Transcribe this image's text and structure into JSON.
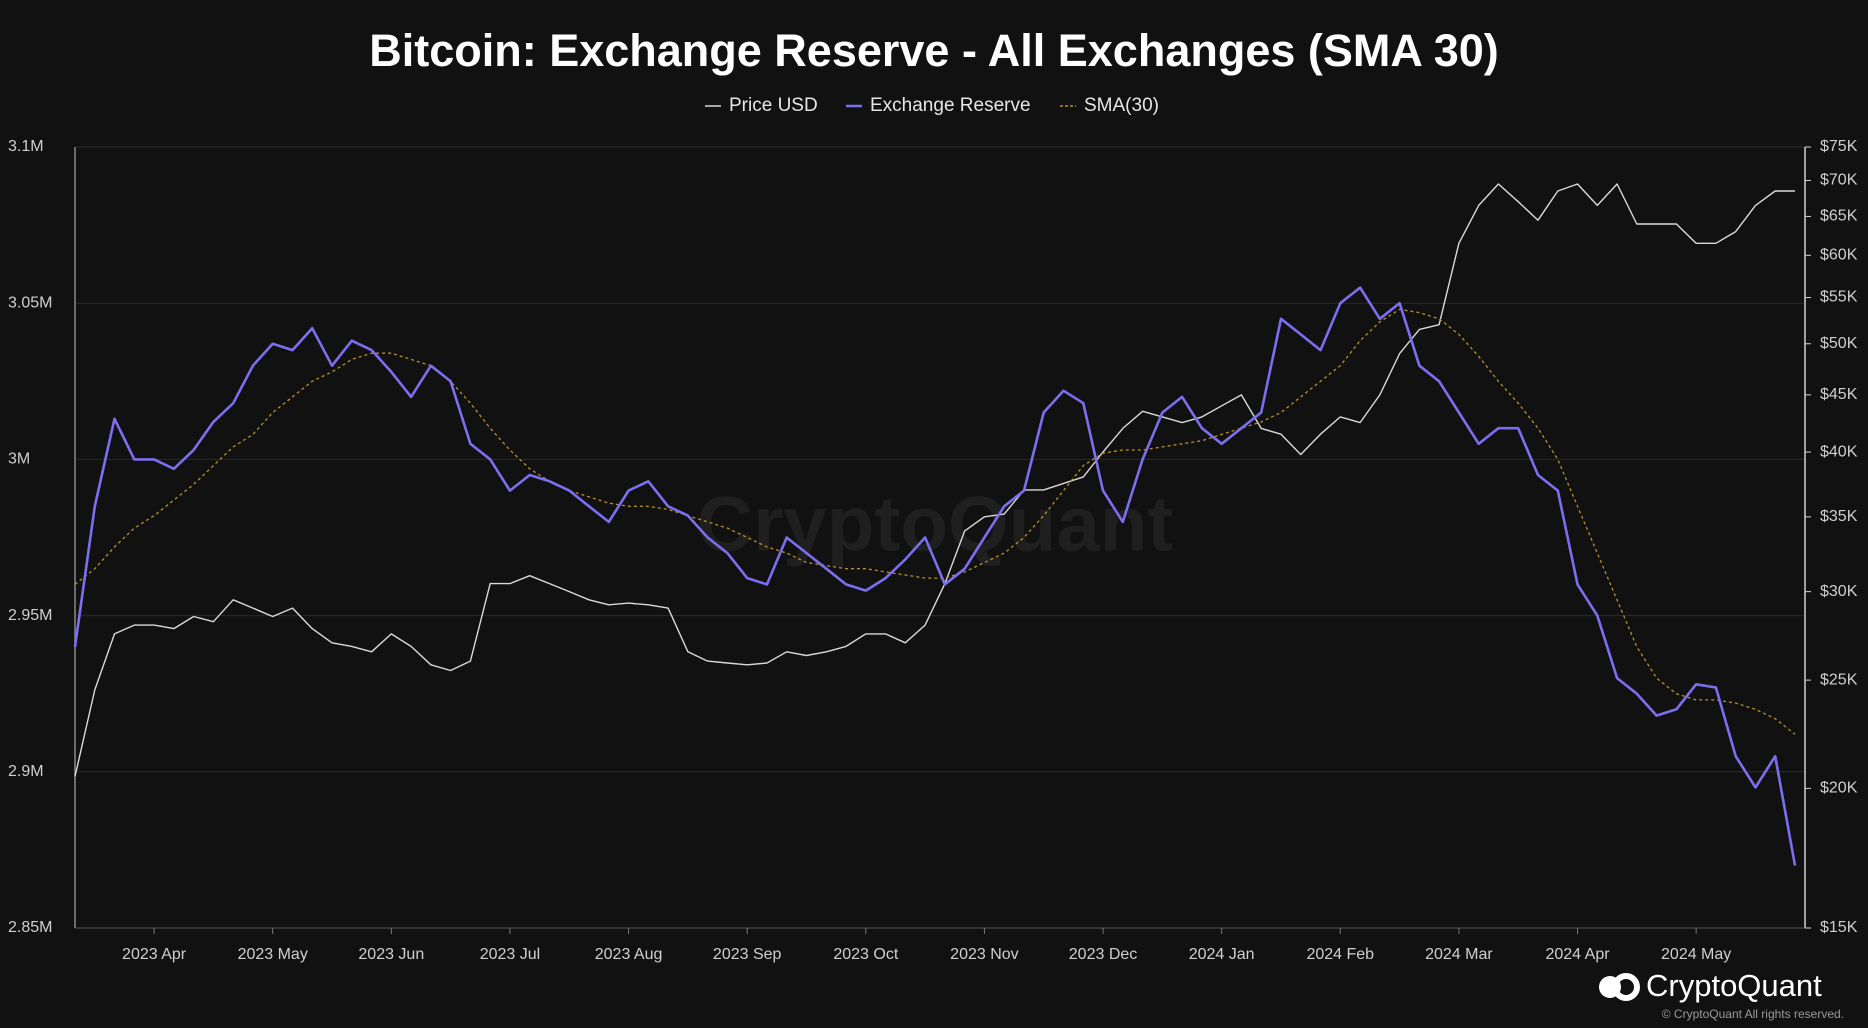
{
  "chart_data": {
    "type": "line",
    "title": "Bitcoin: Exchange Reserve - All Exchanges (SMA 30)",
    "watermark": "CryptoQuant",
    "logo_text": "CryptoQuant",
    "copyright": "© CryptoQuant All rights reserved.",
    "categories": [
      null,
      null,
      null,
      null,
      "2023 Apr",
      null,
      null,
      null,
      null,
      null,
      "2023 May",
      null,
      null,
      null,
      null,
      null,
      "2023 Jun",
      null,
      null,
      null,
      null,
      null,
      "2023 Jul",
      null,
      null,
      null,
      null,
      null,
      "2023 Aug",
      null,
      null,
      null,
      null,
      null,
      "2023 Sep",
      null,
      null,
      null,
      null,
      null,
      "2023 Oct",
      null,
      null,
      null,
      null,
      null,
      "2023 Nov",
      null,
      null,
      null,
      null,
      null,
      "2023 Dec",
      null,
      null,
      null,
      null,
      null,
      "2024 Jan",
      null,
      null,
      null,
      null,
      null,
      "2024 Feb",
      null,
      null,
      null,
      null,
      null,
      "2024 Mar",
      null,
      null,
      null,
      null,
      null,
      "2024 Apr",
      null,
      null,
      null,
      null,
      null,
      "2024 May",
      null,
      null,
      null,
      null,
      null
    ],
    "series": [
      {
        "name": "Price USD",
        "color": "#d9d9d9",
        "axis": "y2",
        "dashed": false,
        "values": [
          20500,
          24500,
          27500,
          28000,
          28000,
          27800,
          28500,
          28200,
          29500,
          29000,
          28500,
          29000,
          27800,
          27000,
          26800,
          26500,
          27500,
          26800,
          25800,
          25500,
          26000,
          30500,
          30500,
          31000,
          30500,
          30000,
          29500,
          29200,
          29300,
          29200,
          29000,
          26500,
          26000,
          25900,
          25800,
          25900,
          26500,
          26300,
          26500,
          26800,
          27500,
          27500,
          27000,
          28000,
          30500,
          34000,
          35000,
          35200,
          37000,
          37000,
          37500,
          38000,
          40000,
          42000,
          43500,
          43000,
          42500,
          43000,
          44000,
          45000,
          42000,
          41500,
          39800,
          41500,
          43000,
          42500,
          45000,
          49000,
          51500,
          52000,
          61500,
          66500,
          69500,
          67000,
          64500,
          68500,
          69500,
          66500,
          69500,
          64000,
          64000,
          64000,
          61500,
          61500,
          63000,
          66500,
          68500,
          68500
        ]
      },
      {
        "name": "Exchange Reserve",
        "color": "#7b6ff0",
        "axis": "y",
        "dashed": false,
        "values": [
          2940000,
          2985000,
          3013000,
          3000000,
          3000000,
          2997000,
          3003000,
          3012000,
          3018000,
          3030000,
          3037000,
          3035000,
          3042000,
          3030000,
          3038000,
          3035000,
          3028000,
          3020000,
          3030000,
          3025000,
          3005000,
          3000000,
          2990000,
          2995000,
          2993000,
          2990000,
          2985000,
          2980000,
          2990000,
          2993000,
          2985000,
          2982000,
          2975000,
          2970000,
          2962000,
          2960000,
          2975000,
          2970000,
          2965000,
          2960000,
          2958000,
          2962000,
          2968000,
          2975000,
          2960000,
          2965000,
          2975000,
          2985000,
          2990000,
          3015000,
          3022000,
          3018000,
          2990000,
          2980000,
          3000000,
          3015000,
          3020000,
          3010000,
          3005000,
          3010000,
          3015000,
          3045000,
          3040000,
          3035000,
          3050000,
          3055000,
          3045000,
          3050000,
          3030000,
          3025000,
          3015000,
          3005000,
          3010000,
          3010000,
          2995000,
          2990000,
          2960000,
          2950000,
          2930000,
          2925000,
          2918000,
          2920000,
          2928000,
          2927000,
          2905000,
          2895000,
          2905000,
          2870000
        ]
      },
      {
        "name": "SMA(30)",
        "color": "#b8902a",
        "axis": "y",
        "dashed": true,
        "values": [
          2960000,
          2965000,
          2972000,
          2978000,
          2982000,
          2987000,
          2992000,
          2998000,
          3004000,
          3008000,
          3015000,
          3020000,
          3025000,
          3028000,
          3032000,
          3034000,
          3034000,
          3032000,
          3030000,
          3025000,
          3018000,
          3010000,
          3003000,
          2997000,
          2993000,
          2990000,
          2988000,
          2986000,
          2985000,
          2985000,
          2984000,
          2982000,
          2980000,
          2978000,
          2975000,
          2972000,
          2970000,
          2967000,
          2966000,
          2965000,
          2965000,
          2964000,
          2963000,
          2962000,
          2962000,
          2964000,
          2967000,
          2970000,
          2975000,
          2982000,
          2990000,
          2998000,
          3002000,
          3003000,
          3003000,
          3004000,
          3005000,
          3006000,
          3008000,
          3010000,
          3012000,
          3015000,
          3020000,
          3025000,
          3030000,
          3038000,
          3044000,
          3048000,
          3047000,
          3045000,
          3040000,
          3033000,
          3025000,
          3018000,
          3010000,
          3000000,
          2985000,
          2970000,
          2955000,
          2940000,
          2930000,
          2925000,
          2923000,
          2923000,
          2922000,
          2920000,
          2917000,
          2912000
        ]
      }
    ],
    "ylim": [
      2850000,
      3100000
    ],
    "yticks": [
      {
        "value": 2850000,
        "label": "2.85M"
      },
      {
        "value": 2900000,
        "label": "2.9M"
      },
      {
        "value": 2950000,
        "label": "2.95M"
      },
      {
        "value": 3000000,
        "label": "3M"
      },
      {
        "value": 3050000,
        "label": "3.05M"
      },
      {
        "value": 3100000,
        "label": "3.1M"
      }
    ],
    "y2lim": [
      15000,
      75000
    ],
    "y2scale": "log",
    "y2ticks": [
      {
        "value": 15000,
        "label": "$15K"
      },
      {
        "value": 20000,
        "label": "$20K"
      },
      {
        "value": 25000,
        "label": "$25K"
      },
      {
        "value": 30000,
        "label": "$30K"
      },
      {
        "value": 35000,
        "label": "$35K"
      },
      {
        "value": 40000,
        "label": "$40K"
      },
      {
        "value": 45000,
        "label": "$45K"
      },
      {
        "value": 50000,
        "label": "$50K"
      },
      {
        "value": 55000,
        "label": "$55K"
      },
      {
        "value": 60000,
        "label": "$60K"
      },
      {
        "value": 65000,
        "label": "$65K"
      },
      {
        "value": 70000,
        "label": "$70K"
      },
      {
        "value": 75000,
        "label": "$75K"
      }
    ],
    "grid": true,
    "legend": "top"
  }
}
